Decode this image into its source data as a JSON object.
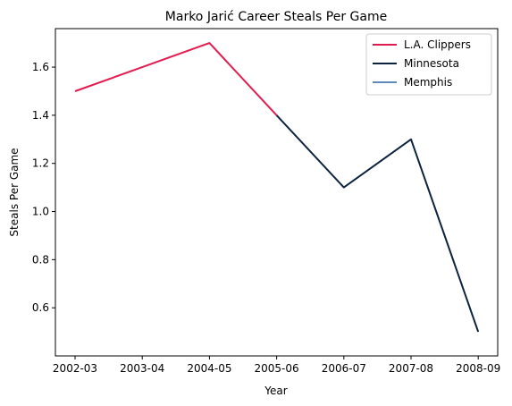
{
  "chart_data": {
    "type": "line",
    "title": "Marko Jarić Career Steals Per Game",
    "xlabel": "Year",
    "ylabel": "Steals Per Game",
    "categories": [
      "2002-03",
      "2003-04",
      "2004-05",
      "2005-06",
      "2006-07",
      "2007-08",
      "2008-09"
    ],
    "ylim": [
      0.4,
      1.76
    ],
    "yticks": [
      0.6,
      0.8,
      1.0,
      1.2,
      1.4,
      1.6
    ],
    "grid": false,
    "legend_position": "top-right",
    "series": [
      {
        "name": "L.A. Clippers",
        "color": "#e31b4f",
        "x": [
          "2002-03",
          "2003-04",
          "2004-05",
          "2005-06"
        ],
        "values": [
          1.5,
          1.6,
          1.7,
          1.4
        ]
      },
      {
        "name": "Minnesota",
        "color": "#0c2340",
        "x": [
          "2005-06",
          "2006-07",
          "2007-08",
          "2008-09"
        ],
        "values": [
          1.4,
          1.1,
          1.3,
          0.5
        ]
      },
      {
        "name": "Memphis",
        "color": "#5d8ab8",
        "x": [],
        "values": []
      }
    ]
  }
}
